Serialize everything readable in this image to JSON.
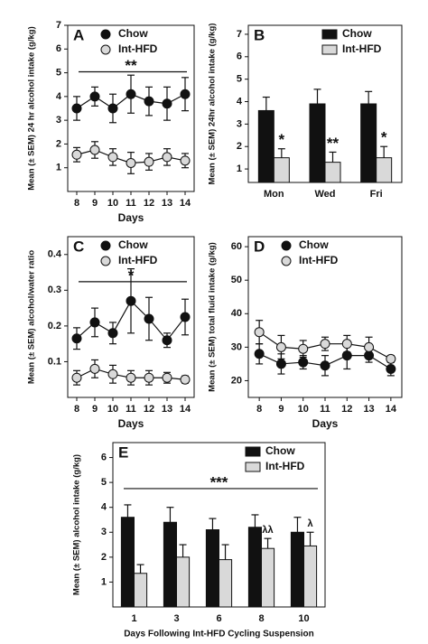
{
  "chart_data": [
    {
      "type": "line",
      "label": "A",
      "y_label": "Mean (± SEM) 24 hr alcohol intake (g/kg)",
      "x_label": "Days",
      "x": [
        8,
        9,
        10,
        11,
        12,
        13,
        14
      ],
      "xlim": [
        7.5,
        14.5
      ],
      "xticks": [
        8,
        9,
        10,
        11,
        12,
        13,
        14
      ],
      "ylim": [
        0,
        7
      ],
      "yticks": [
        1,
        2,
        3,
        4,
        5,
        6,
        7
      ],
      "legend": "top-left",
      "significance": "**",
      "series": [
        {
          "name": "Chow",
          "color": "#111111",
          "values": [
            3.5,
            4.0,
            3.5,
            4.1,
            3.8,
            3.7,
            4.1
          ],
          "errors": [
            0.5,
            0.4,
            0.6,
            0.8,
            0.6,
            0.7,
            0.7
          ]
        },
        {
          "name": "Int-HFD",
          "color": "#d9d9d9",
          "values": [
            1.55,
            1.75,
            1.45,
            1.2,
            1.25,
            1.45,
            1.3
          ],
          "errors": [
            0.3,
            0.35,
            0.35,
            0.45,
            0.35,
            0.35,
            0.3
          ]
        }
      ]
    },
    {
      "type": "bar",
      "label": "B",
      "y_label": "Mean (± SEM) 24hr alcohol intake (g/kg)",
      "categories": [
        "Mon",
        "Wed",
        "Fri"
      ],
      "ylim": [
        0.4,
        7.4
      ],
      "yticks": [
        1,
        2,
        3,
        4,
        5,
        6,
        7
      ],
      "legend": "top-right",
      "series": [
        {
          "name": "Chow",
          "color": "#111111",
          "values": [
            3.6,
            3.9,
            3.9
          ],
          "errors": [
            0.6,
            0.65,
            0.55
          ]
        },
        {
          "name": "Int-HFD",
          "color": "#d9d9d9",
          "values": [
            1.5,
            1.3,
            1.5
          ],
          "errors": [
            0.4,
            0.45,
            0.5
          ],
          "annotations": [
            "*",
            "**",
            "*"
          ]
        }
      ]
    },
    {
      "type": "line",
      "label": "C",
      "y_label": "Mean (± SEM) alcohol/water ratio",
      "x_label": "Days",
      "x": [
        8,
        9,
        10,
        11,
        12,
        13,
        14
      ],
      "xlim": [
        7.5,
        14.5
      ],
      "xticks": [
        8,
        9,
        10,
        11,
        12,
        13,
        14
      ],
      "ylim": [
        0,
        0.45
      ],
      "yticks": [
        0.1,
        0.2,
        0.3,
        0.4
      ],
      "legend": "top-left",
      "significance": "*",
      "series": [
        {
          "name": "Chow",
          "color": "#111111",
          "values": [
            0.165,
            0.21,
            0.18,
            0.27,
            0.22,
            0.16,
            0.225
          ],
          "errors": [
            0.03,
            0.04,
            0.03,
            0.09,
            0.06,
            0.02,
            0.05
          ]
        },
        {
          "name": "Int-HFD",
          "color": "#d9d9d9",
          "values": [
            0.055,
            0.08,
            0.065,
            0.055,
            0.055,
            0.055,
            0.05
          ],
          "errors": [
            0.02,
            0.025,
            0.025,
            0.02,
            0.02,
            0.015,
            0.01
          ]
        }
      ]
    },
    {
      "type": "line",
      "label": "D",
      "y_label": "Mean (± SEM) total fluid intake (g/kg)",
      "x_label": "Days",
      "x": [
        8,
        9,
        10,
        11,
        12,
        13,
        14
      ],
      "xlim": [
        7.5,
        14.5
      ],
      "xticks": [
        8,
        9,
        10,
        11,
        12,
        13,
        14
      ],
      "ylim": [
        15,
        63
      ],
      "yticks": [
        20,
        30,
        40,
        50,
        60
      ],
      "legend": "top-left",
      "series": [
        {
          "name": "Chow",
          "color": "#111111",
          "values": [
            28,
            25,
            25.5,
            24.5,
            27.5,
            27.5,
            23.5
          ],
          "errors": [
            3,
            3,
            2,
            3,
            4,
            2,
            2
          ]
        },
        {
          "name": "Int-HFD",
          "color": "#d9d9d9",
          "values": [
            34.5,
            30,
            29.5,
            31,
            31,
            30,
            26.5
          ],
          "errors": [
            3.5,
            3.5,
            2.5,
            2,
            2.5,
            3,
            1
          ]
        }
      ]
    },
    {
      "type": "bar",
      "label": "E",
      "y_label": "Mean (± SEM) alcohol intake (g/kg)",
      "x_label": "Days Following Int-HFD Cycling Suspension",
      "categories": [
        "1",
        "3",
        "6",
        "8",
        "10"
      ],
      "ylim": [
        0,
        6.6
      ],
      "yticks": [
        1,
        2,
        3,
        4,
        5,
        6
      ],
      "legend": "top-right",
      "significance": "***",
      "series": [
        {
          "name": "Chow",
          "color": "#111111",
          "values": [
            3.6,
            3.4,
            3.1,
            3.2,
            3.0
          ],
          "errors": [
            0.5,
            0.6,
            0.45,
            0.5,
            0.6
          ]
        },
        {
          "name": "Int-HFD",
          "color": "#d9d9d9",
          "values": [
            1.35,
            2.0,
            1.9,
            2.35,
            2.45
          ],
          "errors": [
            0.35,
            0.5,
            0.6,
            0.4,
            0.55
          ],
          "annotations": [
            null,
            null,
            null,
            "λλ",
            "λ"
          ]
        }
      ]
    }
  ]
}
